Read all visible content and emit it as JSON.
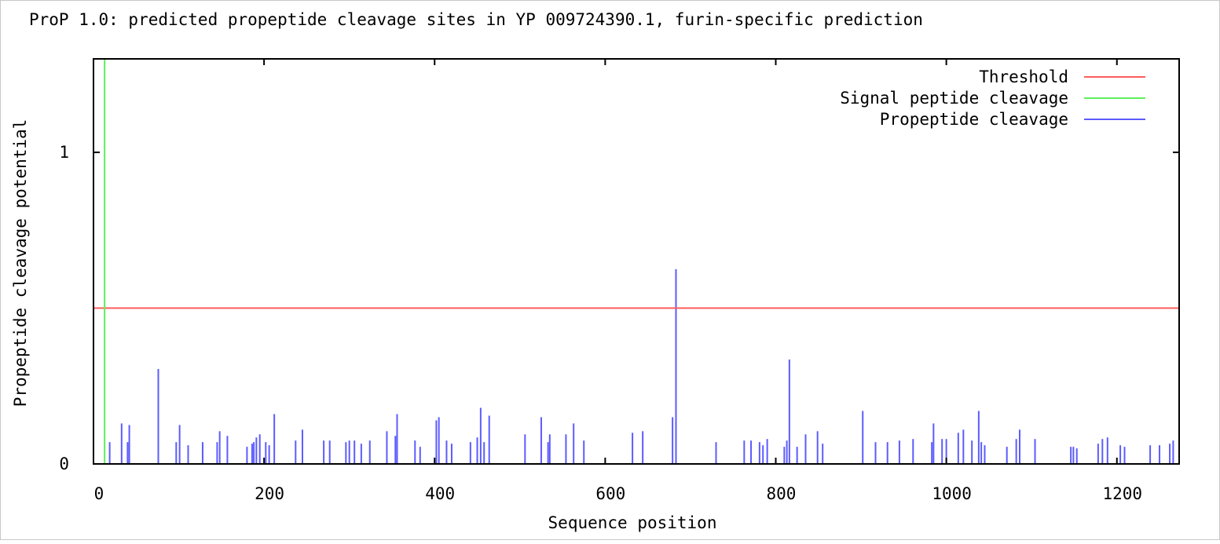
{
  "chart_data": {
    "type": "bar",
    "title": "ProP 1.0: predicted propeptide cleavage sites in YP 009724390.1, furin-specific prediction",
    "xlabel": "Sequence position",
    "ylabel": "Propeptide cleavage potential",
    "xlim": [
      0,
      1273
    ],
    "ylim": [
      0,
      1.3
    ],
    "xticks": [
      0,
      200,
      400,
      600,
      800,
      1000,
      1200
    ],
    "yticks": [
      0,
      1
    ],
    "grid": false,
    "legend_position": "top-right",
    "threshold": 0.5,
    "signal_peptide_position": 13,
    "legend": [
      {
        "label": "Threshold",
        "color": "#ff5c5c"
      },
      {
        "label": "Signal peptide cleavage",
        "color": "#5cf05c"
      },
      {
        "label": "Propeptide cleavage",
        "color": "#5c5cff"
      }
    ],
    "series": [
      {
        "name": "Propeptide cleavage",
        "x": [
          19,
          33,
          40,
          42,
          76,
          97,
          101,
          111,
          128,
          145,
          148,
          157,
          180,
          186,
          188,
          191,
          195,
          202,
          206,
          212,
          237,
          245,
          270,
          277,
          296,
          300,
          306,
          314,
          324,
          344,
          354,
          356,
          377,
          383,
          402,
          405,
          414,
          420,
          442,
          450,
          454,
          458,
          464,
          506,
          525,
          533,
          535,
          554,
          563,
          575,
          632,
          644,
          679,
          683,
          730,
          763,
          771,
          781,
          785,
          790,
          810,
          813,
          816,
          825,
          835,
          849,
          855,
          902,
          917,
          931,
          945,
          961,
          983,
          985,
          995,
          1000,
          1014,
          1020,
          1030,
          1038,
          1041,
          1045,
          1071,
          1082,
          1086,
          1104,
          1146,
          1149,
          1153,
          1178,
          1183,
          1189,
          1204,
          1209,
          1239,
          1250,
          1262,
          1266
        ],
        "values": [
          0.07,
          0.13,
          0.07,
          0.125,
          0.305,
          0.07,
          0.125,
          0.06,
          0.07,
          0.07,
          0.105,
          0.09,
          0.055,
          0.065,
          0.07,
          0.085,
          0.095,
          0.07,
          0.06,
          0.16,
          0.075,
          0.11,
          0.075,
          0.075,
          0.07,
          0.075,
          0.075,
          0.065,
          0.075,
          0.105,
          0.09,
          0.16,
          0.075,
          0.055,
          0.14,
          0.15,
          0.075,
          0.065,
          0.07,
          0.085,
          0.18,
          0.07,
          0.155,
          0.095,
          0.15,
          0.07,
          0.095,
          0.095,
          0.13,
          0.075,
          0.1,
          0.105,
          0.15,
          0.625,
          0.07,
          0.075,
          0.075,
          0.07,
          0.06,
          0.08,
          0.055,
          0.075,
          0.335,
          0.055,
          0.095,
          0.105,
          0.065,
          0.17,
          0.07,
          0.07,
          0.075,
          0.08,
          0.07,
          0.13,
          0.08,
          0.08,
          0.1,
          0.11,
          0.075,
          0.17,
          0.07,
          0.06,
          0.055,
          0.08,
          0.11,
          0.08,
          0.055,
          0.055,
          0.05,
          0.065,
          0.08,
          0.085,
          0.06,
          0.055,
          0.06,
          0.06,
          0.065,
          0.075
        ]
      }
    ]
  }
}
